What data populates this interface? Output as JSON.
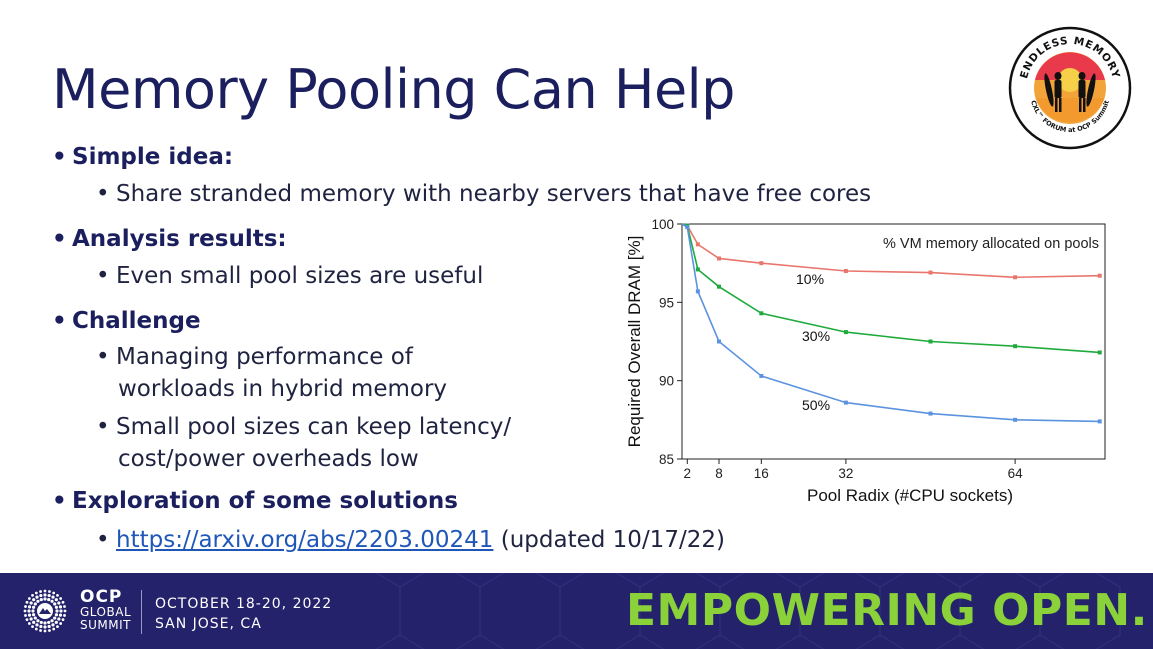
{
  "slide": {
    "title": "Memory Pooling Can Help",
    "bullets": {
      "b1": "Simple idea:",
      "b1_1": "Share stranded memory with nearby servers that have free cores",
      "b2": "Analysis results:",
      "b2_1": "Even small pool sizes are useful",
      "b3": "Challenge",
      "b3_1_line1": "Managing performance of",
      "b3_1_line2": "workloads in hybrid memory",
      "b3_2_line1": "Small pool sizes can keep latency/",
      "b3_2_line2": "cost/power overheads low",
      "b4": "Exploration of some solutions",
      "b4_link": "https://arxiv.org/abs/2203.00241",
      "b4_suffix": " (updated 10/17/22)"
    },
    "bullet_glyph": "•"
  },
  "logo": {
    "top_text": "ENDLESS MEMORY",
    "bottom_text": "CXL™ FORUM at OCP Summit"
  },
  "footer": {
    "brand_big": "OCP",
    "brand_line2": "GLOBAL",
    "brand_line3": "SUMMIT",
    "event_date": "OCTOBER 18-20, 2022",
    "event_place": "SAN JOSE, CA",
    "slogan": "EMPOWERING OPEN."
  },
  "colors": {
    "title": "#1b1f5e",
    "footer_bg": "#23226b",
    "slogan": "#8bd13a",
    "series_10": "#e8766d",
    "series_30": "#1faa3c",
    "series_50": "#5b93e0"
  },
  "chart_data": {
    "type": "line",
    "title": "",
    "legend_title": "% VM memory allocated on pools",
    "xlabel": "Pool Radix (#CPU sockets)",
    "ylabel": "Required Overall DRAM [%]",
    "xlim": [
      1,
      81
    ],
    "ylim": [
      85,
      100
    ],
    "xticks": [
      2,
      8,
      16,
      32,
      64
    ],
    "yticks": [
      85,
      90,
      95,
      100
    ],
    "series": [
      {
        "name": "10%",
        "color": "#e8766d",
        "x": [
          1,
          2,
          4,
          8,
          16,
          32,
          48,
          64,
          80
        ],
        "y": [
          100,
          99.9,
          98.7,
          97.8,
          97.5,
          97.0,
          96.9,
          96.6,
          96.7
        ]
      },
      {
        "name": "30%",
        "color": "#1faa3c",
        "x": [
          1,
          2,
          4,
          8,
          16,
          32,
          48,
          64,
          80
        ],
        "y": [
          100,
          99.9,
          97.1,
          96.0,
          94.3,
          93.1,
          92.5,
          92.2,
          91.8
        ]
      },
      {
        "name": "50%",
        "color": "#5b93e0",
        "x": [
          1,
          2,
          4,
          8,
          16,
          32,
          48,
          64,
          80
        ],
        "y": [
          100,
          99.8,
          95.7,
          92.5,
          90.3,
          88.6,
          87.9,
          87.5,
          87.4
        ]
      }
    ]
  }
}
